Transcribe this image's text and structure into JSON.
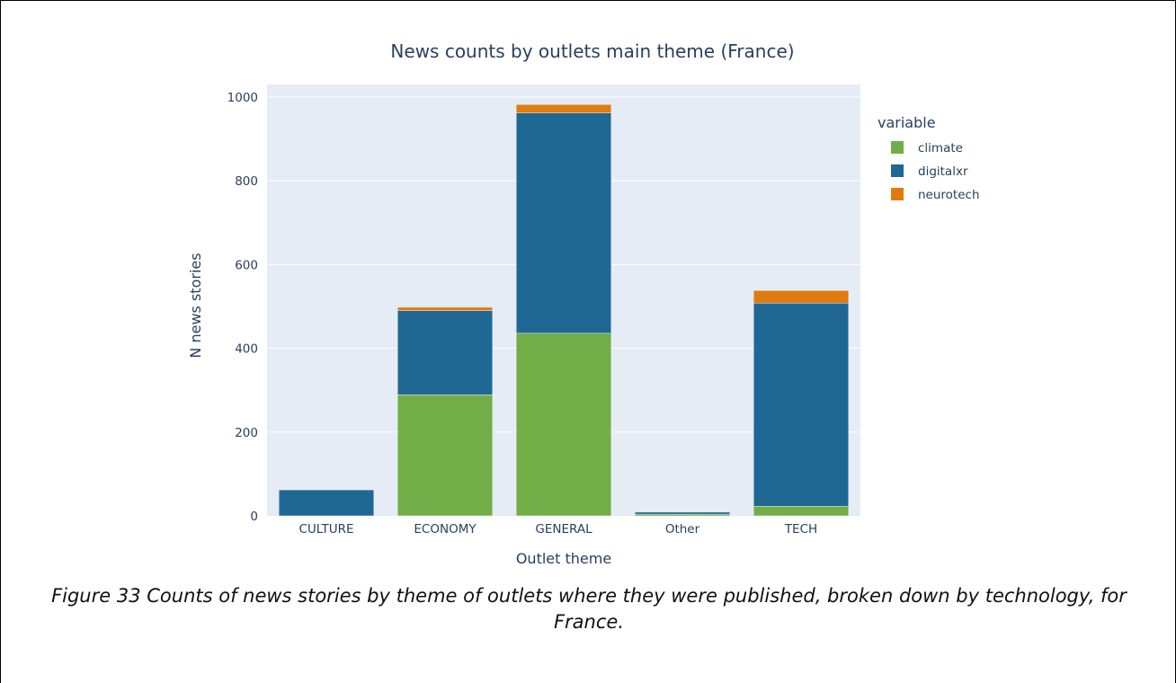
{
  "figure_caption": "Figure 33 Counts of news stories by theme of outlets where they were published, broken down by technology, for France.",
  "chart_data": {
    "type": "bar",
    "stacked": true,
    "title": "News counts by outlets main theme (France)",
    "xlabel": "Outlet theme",
    "ylabel": "N news stories",
    "categories": [
      "CULTURE",
      "ECONOMY",
      "GENERAL",
      "Other",
      "TECH"
    ],
    "series": [
      {
        "name": "climate",
        "color": "#72ad47",
        "values": [
          0,
          289,
          436,
          4,
          23
        ]
      },
      {
        "name": "digitalxr",
        "color": "#1f6894",
        "values": [
          62,
          201,
          526,
          5,
          485
        ]
      },
      {
        "name": "neurotech",
        "color": "#e17b0e",
        "values": [
          0,
          8,
          20,
          1,
          30
        ]
      }
    ],
    "ylim": [
      0,
      1030
    ],
    "yticks": [
      0,
      200,
      400,
      600,
      800,
      1000
    ],
    "grid": true,
    "legend_title": "variable",
    "legend_position": "right",
    "plot_background": "#e5ecf6",
    "gridline_color": "#ffffff"
  }
}
